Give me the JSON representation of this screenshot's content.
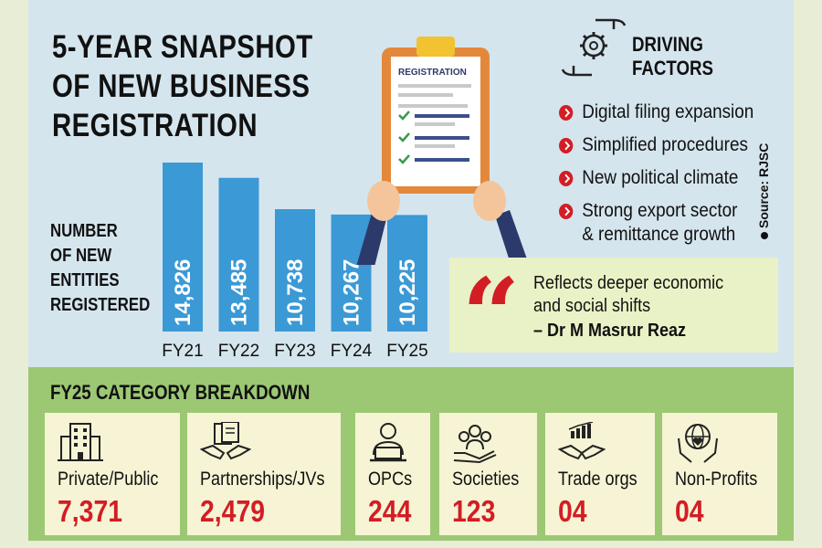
{
  "title_lines": [
    "5-YEAR SNAPSHOT",
    "OF NEW BUSINESS",
    "REGISTRATION"
  ],
  "chart_data": {
    "type": "bar",
    "title": "5-YEAR SNAPSHOT OF NEW BUSINESS REGISTRATION",
    "ylabel": "NUMBER OF NEW ENTITIES REGISTERED",
    "categories": [
      "FY21",
      "FY22",
      "FY23",
      "FY24",
      "FY25"
    ],
    "values": [
      14826,
      13485,
      10738,
      10267,
      10225
    ],
    "value_labels": [
      "14,826",
      "13,485",
      "10,738",
      "10,267",
      "10,225"
    ],
    "bar_color": "#3b99d6",
    "grid": false
  },
  "ylabel_lines": [
    "NUMBER",
    "OF NEW",
    "ENTITIES",
    "REGISTERED"
  ],
  "clipboard_label": "REGISTRATION",
  "driving": {
    "title_lines": [
      "DRIVING",
      "FACTORS"
    ],
    "icon": "gear-hands-icon",
    "items": [
      {
        "text": "Digital filing expansion"
      },
      {
        "text": "Simplified procedures"
      },
      {
        "text": "New political climate"
      },
      {
        "text": "Strong export sector",
        "text2": "& remittance growth"
      }
    ]
  },
  "source": "Source: RJSC",
  "quote": {
    "line1": "Reflects deeper economic",
    "line2": "and social shifts",
    "author": "– Dr M Masrur Reaz"
  },
  "breakdown": {
    "title": "FY25 CATEGORY BREAKDOWN",
    "items": [
      {
        "label": "Private/Public",
        "value": "7,371",
        "icon": "building-icon"
      },
      {
        "label": "Partnerships/JVs",
        "value": "2,479",
        "icon": "handshake-documents-icon"
      },
      {
        "label": "OPCs",
        "value": "244",
        "icon": "person-laptop-icon"
      },
      {
        "label": "Societies",
        "value": "123",
        "icon": "people-hand-icon"
      },
      {
        "label": "Trade orgs",
        "value": "04",
        "icon": "handshake-chart-icon"
      },
      {
        "label": "Non-Profits",
        "value": "04",
        "icon": "globe-heart-hands-icon"
      }
    ]
  },
  "colors": {
    "top_bg": "#d5e5ee",
    "bottom_bg": "#9cc874",
    "card_bg": "#f6f4d4",
    "accent_red": "#d31d24",
    "quote_bg": "#e9f1c6"
  }
}
